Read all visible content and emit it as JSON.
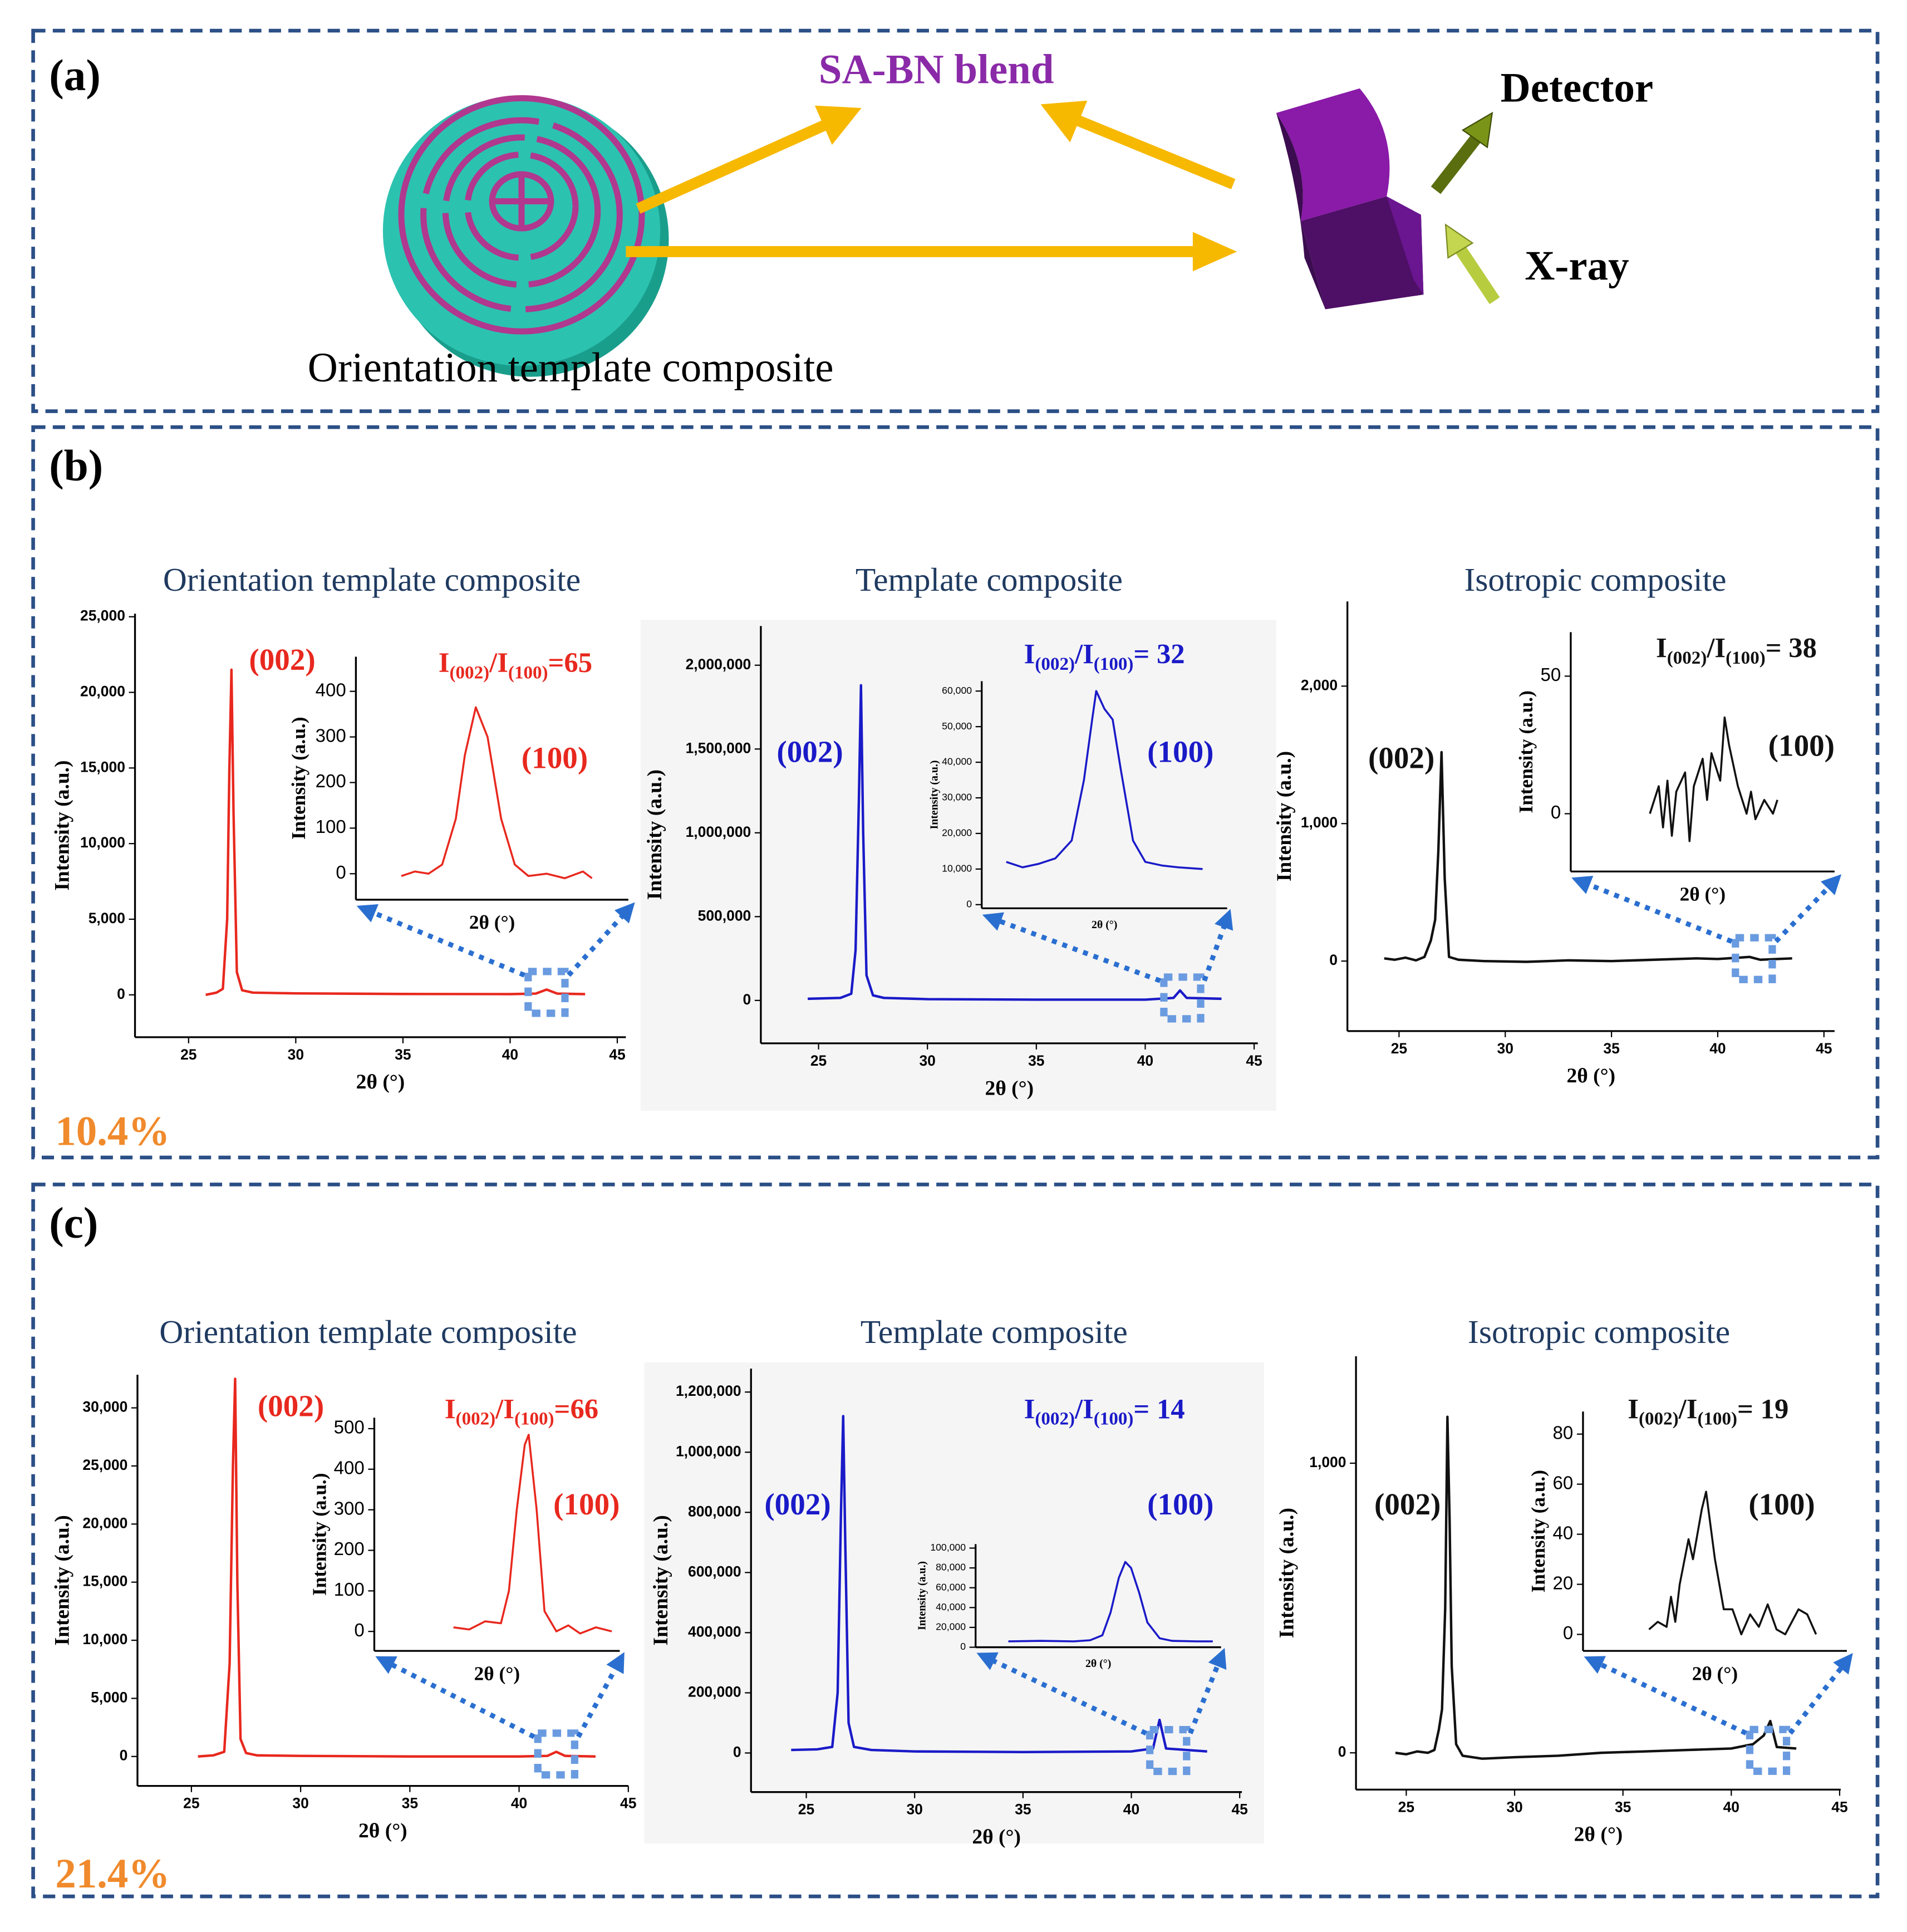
{
  "diagram": {
    "label": "(a)",
    "blend": "SA-BN blend",
    "detector": "Detector",
    "xray": "X-ray",
    "caption": "Orientation template composite"
  },
  "panel_labels": [
    "(b)",
    "(c)"
  ],
  "fractions": [
    "10.4%",
    "21.4%"
  ],
  "chart_data": [
    {
      "type": "line",
      "title": "Orientation template composite",
      "x_label": "2θ (°)",
      "y_label": "Intensity (a.u.)",
      "color": "#e8281e",
      "x": [
        25.8,
        26.3,
        26.6,
        26.8,
        26.9,
        27.0,
        27.1,
        27.25,
        27.5,
        28,
        30,
        35,
        40,
        41.2,
        41.7,
        42.2,
        43.5
      ],
      "values": [
        0,
        150,
        400,
        5000,
        15000,
        21500,
        12000,
        1500,
        300,
        150,
        100,
        60,
        50,
        80,
        350,
        80,
        50
      ],
      "xlim": [
        22.5,
        45.4
      ],
      "xticks": [
        25,
        30,
        35,
        40,
        45
      ],
      "ylim": [
        -2800,
        25200
      ],
      "yticks": [
        0,
        {
          "value": 5000,
          "label": "5,000"
        },
        {
          "value": 10000,
          "label": "10,000"
        },
        {
          "value": 15000,
          "label": "15,000"
        },
        {
          "value": 20000,
          "label": "20,000"
        },
        {
          "value": 25000,
          "label": "25,000"
        }
      ],
      "annotations": [
        "(002)",
        "(100)"
      ],
      "ratio": [
        "I",
        "(002)",
        "/I",
        "(100)",
        "=65"
      ]
    },
    {
      "type": "line",
      "x_label": "2θ (°)",
      "y_label": "Intensity (a.u.)",
      "color": "#e8281e",
      "x": [
        41.0,
        41.15,
        41.3,
        41.45,
        41.6,
        41.7,
        41.82,
        41.95,
        42.1,
        42.25,
        42.4,
        42.6,
        42.8,
        43.0,
        43.1
      ],
      "values": [
        -5,
        5,
        0,
        20,
        120,
        260,
        365,
        300,
        120,
        20,
        -5,
        0,
        -10,
        5,
        -10
      ],
      "xlim": [
        40.5,
        43.5
      ],
      "ylim": [
        -57,
        476
      ],
      "yticks": [
        0,
        100,
        200,
        300,
        400
      ]
    },
    {
      "type": "line",
      "title": "Template composite",
      "x_label": "2θ (°)",
      "y_label": "Intensity (a.u.)",
      "color": "#1a1ac8",
      "x": [
        24.5,
        26.0,
        26.5,
        26.7,
        26.85,
        26.95,
        27.05,
        27.2,
        27.5,
        28,
        30,
        35,
        40,
        41.3,
        41.6,
        41.9,
        43.5
      ],
      "values": [
        10000,
        15000,
        40000,
        300000,
        1200000,
        1880000,
        1000000,
        150000,
        30000,
        15000,
        8000,
        5000,
        5000,
        15000,
        60000,
        15000,
        10000
      ],
      "xlim": [
        22.35,
        45.17
      ],
      "xticks": [
        25,
        30,
        35,
        40,
        45
      ],
      "ylim": [
        -256000,
        2234000
      ],
      "yticks": [
        0,
        {
          "value": 500000,
          "label": "500,000"
        },
        {
          "value": 1000000,
          "label": "1,000,000"
        },
        {
          "value": 1500000,
          "label": "1,500,000"
        },
        {
          "value": 2000000,
          "label": "2,000,000"
        }
      ],
      "annotations": [
        "(002)",
        "(100)"
      ],
      "ratio": [
        "I",
        "(002)",
        "/I",
        "(100)",
        "= 32"
      ]
    },
    {
      "type": "line",
      "x_label": "2θ (°)",
      "y_label": "Intensity (a.u.)",
      "color": "#1a1ac8",
      "x": [
        40.8,
        41.0,
        41.2,
        41.4,
        41.6,
        41.75,
        41.85,
        41.9,
        42.0,
        42.1,
        42.2,
        42.35,
        42.5,
        42.7,
        42.9,
        43.2
      ],
      "values": [
        12000,
        10500,
        11500,
        13000,
        18000,
        35000,
        52000,
        60000,
        55000,
        52000,
        38000,
        18000,
        12000,
        11000,
        10500,
        10000
      ],
      "xlim": [
        40.5,
        43.5
      ],
      "ylim": [
        -1030,
        62760
      ],
      "yticks": [
        0,
        {
          "value": 10000,
          "label": "10,000"
        },
        {
          "value": 20000,
          "label": "20,000"
        },
        {
          "value": 30000,
          "label": "30,000"
        },
        {
          "value": 40000,
          "label": "40,000"
        },
        {
          "value": 50000,
          "label": "50,000"
        },
        {
          "value": 60000,
          "label": "60,000"
        }
      ]
    },
    {
      "type": "line",
      "title": "Isotropic composite",
      "x_label": "2θ (°)",
      "y_label": "Intensity (a.u.)",
      "color": "#111111",
      "x": [
        24.3,
        24.8,
        25.3,
        25.8,
        26.2,
        26.5,
        26.7,
        26.85,
        27.0,
        27.15,
        27.35,
        27.8,
        29,
        31,
        33,
        35,
        37,
        39,
        40,
        41,
        41.5,
        42,
        43.5
      ],
      "values": [
        20,
        10,
        25,
        5,
        30,
        150,
        300,
        800,
        1520,
        600,
        30,
        10,
        0,
        -5,
        5,
        0,
        10,
        20,
        15,
        25,
        30,
        10,
        20
      ],
      "xlim": [
        22.57,
        45.5
      ],
      "xticks": [
        25,
        30,
        35,
        40,
        45
      ],
      "ylim": [
        -509,
        2616
      ],
      "yticks": [
        0,
        {
          "value": 1000,
          "label": "1,000"
        },
        {
          "value": 2000,
          "label": "2,000"
        }
      ],
      "annotations": [
        "(002)",
        "(100)"
      ],
      "ratio": [
        "I",
        "(002)",
        "/I",
        "(100)",
        "= 38"
      ]
    },
    {
      "type": "line",
      "x_label": "2θ (°)",
      "y_label": "Intensity (a.u.)",
      "color": "#111111",
      "x": [
        40.9,
        41.0,
        41.05,
        41.1,
        41.15,
        41.2,
        41.3,
        41.35,
        41.4,
        41.5,
        41.55,
        41.6,
        41.7,
        41.75,
        41.8,
        41.9,
        42.0,
        42.05,
        42.1,
        42.2,
        42.3,
        42.35
      ],
      "values": [
        0,
        10,
        -5,
        12,
        -8,
        8,
        15,
        -10,
        10,
        20,
        5,
        22,
        12,
        35,
        25,
        10,
        0,
        8,
        -2,
        5,
        0,
        5
      ],
      "xlim": [
        40,
        43
      ],
      "ylim": [
        -21,
        66
      ],
      "yticks": [
        0,
        50
      ]
    },
    {
      "type": "line",
      "title": "Orientation template composite",
      "x_label": "2θ (°)",
      "y_label": "Intensity (a.u.)",
      "color": "#e8281e",
      "x": [
        25.3,
        26.0,
        26.5,
        26.75,
        26.9,
        27.0,
        27.1,
        27.25,
        27.5,
        28,
        30,
        35,
        40,
        41.3,
        41.7,
        42.1,
        43.5
      ],
      "values": [
        0,
        100,
        400,
        8000,
        25000,
        32500,
        15000,
        1500,
        300,
        100,
        50,
        0,
        0,
        50,
        400,
        50,
        0
      ],
      "xlim": [
        22.53,
        45
      ],
      "xticks": [
        25,
        30,
        35,
        40,
        45
      ],
      "ylim": [
        -2535,
        32850
      ],
      "yticks": [
        0,
        {
          "value": 5000,
          "label": "5,000"
        },
        {
          "value": 10000,
          "label": "10,000"
        },
        {
          "value": 15000,
          "label": "15,000"
        },
        {
          "value": 20000,
          "label": "20,000"
        },
        {
          "value": 25000,
          "label": "25,000"
        },
        {
          "value": 30000,
          "label": "30,000"
        }
      ],
      "annotations": [
        "(002)",
        "(100)"
      ],
      "ratio": [
        "I",
        "(002)",
        "/I",
        "(100)",
        "=66"
      ]
    },
    {
      "type": "line",
      "x_label": "2θ (°)",
      "y_label": "Intensity (a.u.)",
      "color": "#e8281e",
      "x": [
        41.5,
        41.7,
        41.9,
        42.1,
        42.2,
        42.3,
        42.4,
        42.45,
        42.55,
        42.65,
        42.8,
        42.95,
        43.1,
        43.3,
        43.5
      ],
      "values": [
        10,
        5,
        25,
        20,
        100,
        300,
        460,
        485,
        300,
        50,
        0,
        15,
        -5,
        10,
        0
      ],
      "xlim": [
        40.5,
        43.6
      ],
      "ylim": [
        -48,
        527
      ],
      "yticks": [
        0,
        100,
        200,
        300,
        400,
        500
      ]
    },
    {
      "type": "line",
      "title": "Template composite",
      "x_label": "2θ (°)",
      "y_label": "Intensity (a.u.)",
      "color": "#1a1ac8",
      "x": [
        24.3,
        25.5,
        26.2,
        26.45,
        26.6,
        26.7,
        26.8,
        26.95,
        27.2,
        28,
        30,
        35,
        40,
        41.0,
        41.3,
        41.6,
        43.5
      ],
      "values": [
        10000,
        12000,
        20000,
        200000,
        800000,
        1120000,
        700000,
        100000,
        20000,
        10000,
        5000,
        3000,
        5000,
        15000,
        110000,
        15000,
        5000
      ],
      "xlim": [
        22.45,
        45.1
      ],
      "xticks": [
        25,
        30,
        35,
        40,
        45
      ],
      "ylim": [
        -130000,
        1278000
      ],
      "yticks": [
        0,
        {
          "value": 200000,
          "label": "200,000"
        },
        {
          "value": 400000,
          "label": "400,000"
        },
        {
          "value": 600000,
          "label": "600,000"
        },
        {
          "value": 800000,
          "label": "800,000"
        },
        {
          "value": 1000000,
          "label": "1,000,000"
        },
        {
          "value": 1200000,
          "label": "1,200,000"
        }
      ],
      "annotations": [
        "(002)",
        "(100)"
      ],
      "ratio": [
        "I",
        "(002)",
        "/I",
        "(100)",
        "= 14"
      ]
    },
    {
      "type": "line",
      "x_label": "2θ (°)",
      "y_label": "Intensity (a.u.)",
      "color": "#1a1ac8",
      "x": [
        40.9,
        41.3,
        41.7,
        41.9,
        42.05,
        42.15,
        42.25,
        42.33,
        42.4,
        42.5,
        42.6,
        42.75,
        42.9,
        43.2,
        43.4
      ],
      "values": [
        6000,
        6500,
        6000,
        7000,
        12000,
        35000,
        70000,
        86000,
        80000,
        55000,
        25000,
        9000,
        6500,
        6000,
        6000
      ],
      "xlim": [
        40.5,
        43.5
      ],
      "ylim": [
        0,
        104000
      ],
      "yticks": [
        0,
        {
          "value": 20000,
          "label": "20,000"
        },
        {
          "value": 40000,
          "label": "40,000"
        },
        {
          "value": 60000,
          "label": "60,000"
        },
        {
          "value": 80000,
          "label": "80,000"
        },
        {
          "value": 100000,
          "label": "100,000"
        }
      ]
    },
    {
      "type": "line",
      "title": "Isotropic composite",
      "x_label": "2θ (°)",
      "y_label": "Intensity (a.u.)",
      "color": "#111111",
      "x": [
        24.5,
        25,
        25.5,
        26,
        26.3,
        26.5,
        26.65,
        26.8,
        26.9,
        27.0,
        27.1,
        27.3,
        27.6,
        28.5,
        30,
        32,
        34,
        36,
        38,
        40,
        41,
        41.5,
        41.8,
        42.1,
        43
      ],
      "values": [
        0,
        -5,
        5,
        0,
        10,
        80,
        150,
        500,
        1160,
        800,
        300,
        30,
        -10,
        -20,
        -15,
        -10,
        0,
        5,
        10,
        15,
        30,
        60,
        110,
        20,
        15
      ],
      "xlim": [
        22.68,
        45.05
      ],
      "xticks": [
        25,
        30,
        35,
        40,
        45
      ],
      "ylim": [
        -127,
        1369
      ],
      "yticks": [
        0,
        {
          "value": 1000,
          "label": "1,000"
        }
      ],
      "annotations": [
        "(002)",
        "(100)"
      ],
      "ratio": [
        "I",
        "(002)",
        "/I",
        "(100)",
        "= 19"
      ]
    },
    {
      "type": "line",
      "x_label": "2θ (°)",
      "y_label": "Intensity (a.u.)",
      "color": "#111111",
      "x": [
        40.75,
        40.85,
        40.95,
        41.0,
        41.05,
        41.1,
        41.2,
        41.25,
        41.35,
        41.4,
        41.5,
        41.6,
        41.7,
        41.8,
        41.9,
        42.0,
        42.1,
        42.2,
        42.3,
        42.45,
        42.55,
        42.65
      ],
      "values": [
        2,
        5,
        3,
        15,
        5,
        20,
        38,
        30,
        50,
        57,
        30,
        10,
        10,
        0,
        8,
        3,
        12,
        2,
        0,
        10,
        8,
        0
      ],
      "xlim": [
        40,
        43
      ],
      "ylim": [
        -6.6,
        89
      ],
      "yticks": [
        0,
        20,
        40,
        60,
        80
      ]
    }
  ]
}
